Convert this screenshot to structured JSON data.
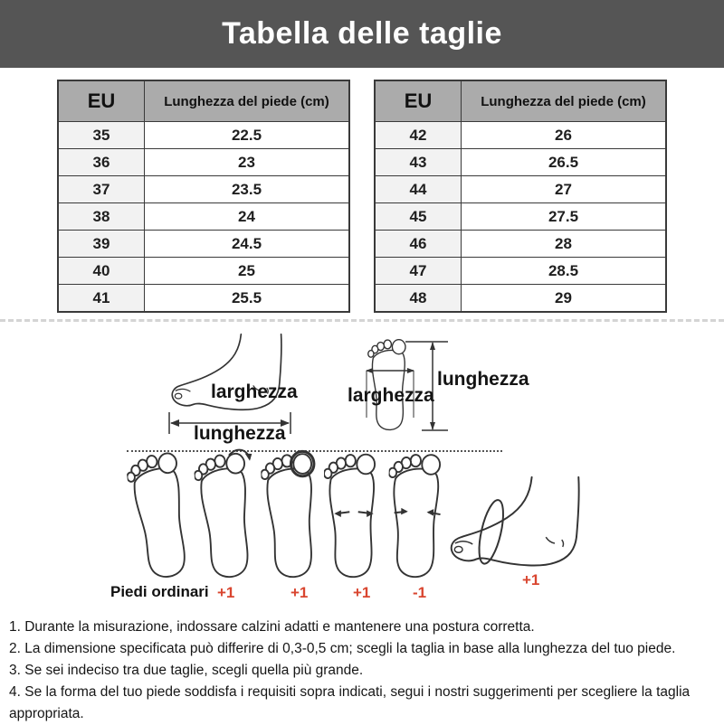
{
  "header": {
    "title": "Tabella delle taglie"
  },
  "tables": [
    {
      "name": "eu-sizes-35-41",
      "columns": [
        "EU",
        "Lunghezza del piede (cm)"
      ],
      "rows": [
        [
          "35",
          "22.5"
        ],
        [
          "36",
          "23"
        ],
        [
          "37",
          "23.5"
        ],
        [
          "38",
          "24"
        ],
        [
          "39",
          "24.5"
        ],
        [
          "40",
          "25"
        ],
        [
          "41",
          "25.5"
        ]
      ]
    },
    {
      "name": "eu-sizes-42-48",
      "columns": [
        "EU",
        "Lunghezza del piede (cm)"
      ],
      "rows": [
        [
          "42",
          "26"
        ],
        [
          "43",
          "26.5"
        ],
        [
          "44",
          "27"
        ],
        [
          "45",
          "27.5"
        ],
        [
          "46",
          "28"
        ],
        [
          "47",
          "28.5"
        ],
        [
          "48",
          "29"
        ]
      ]
    }
  ],
  "diagram": {
    "side_foot_width_label": "larghezza",
    "side_foot_length_label": "lunghezza",
    "top_foot_width_label": "larghezza",
    "top_foot_length_label": "lunghezza"
  },
  "feet_row": {
    "ordinary_label": "Piedi ordinari",
    "annotations": [
      "+1",
      "+1",
      "+1",
      "-1",
      "+1"
    ],
    "annotation_color": "#d9452f"
  },
  "notes": [
    "1. Durante la misurazione, indossare calzini adatti e mantenere una postura corretta.",
    "2. La dimensione specificata può differire di 0,3-0,5 cm; scegli la taglia in base alla lunghezza del tuo piede.",
    "3. Se sei indeciso tra due taglie, scegli quella più grande.",
    "4. Se la forma del tuo piede soddisfa i requisiti sopra indicati, segui i nostri suggerimenti per scegliere la taglia appropriata."
  ],
  "colors": {
    "banner_bg": "#555555",
    "table_header_bg": "#ababab",
    "eu_cell_bg": "#f2f2f2",
    "accent_red": "#d9452f"
  }
}
